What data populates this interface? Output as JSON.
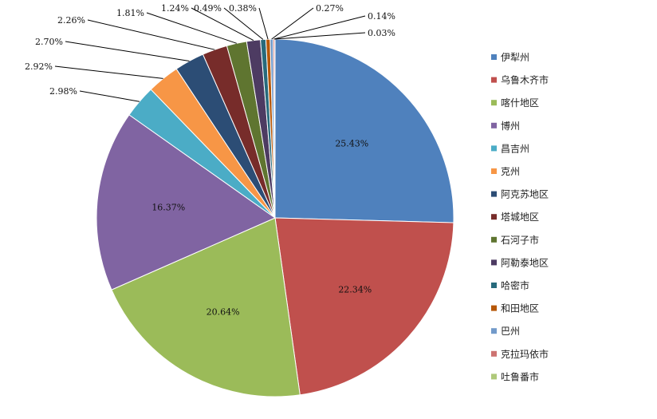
{
  "chart_data": {
    "type": "pie",
    "title": "",
    "legend_position": "right",
    "slices": [
      {
        "name": "伊犁州",
        "value": 25.43,
        "label": "25.43%",
        "color": "#4F81BD"
      },
      {
        "name": "乌鲁木齐市",
        "value": 22.34,
        "label": "22.34%",
        "color": "#C0504D"
      },
      {
        "name": "喀什地区",
        "value": 20.64,
        "label": "20.64%",
        "color": "#9BBB59"
      },
      {
        "name": "博州",
        "value": 16.37,
        "label": "16.37%",
        "color": "#8064A2"
      },
      {
        "name": "昌吉州",
        "value": 2.98,
        "label": "2.98%",
        "color": "#4BACC6"
      },
      {
        "name": "克州",
        "value": 2.92,
        "label": "2.92%",
        "color": "#F79646"
      },
      {
        "name": "阿克苏地区",
        "value": 2.7,
        "label": "2.70%",
        "color": "#2C4D75"
      },
      {
        "name": "塔城地区",
        "value": 2.26,
        "label": "2.26%",
        "color": "#772C2A"
      },
      {
        "name": "石河子市",
        "value": 1.81,
        "label": "1.81%",
        "color": "#5F7530"
      },
      {
        "name": "阿勒泰地区",
        "value": 1.24,
        "label": "1.24%",
        "color": "#4D3B62"
      },
      {
        "name": "哈密市",
        "value": 0.49,
        "label": "0.49%",
        "color": "#276A7C"
      },
      {
        "name": "和田地区",
        "value": 0.38,
        "label": "0.38%",
        "color": "#B65708"
      },
      {
        "name": "巴州",
        "value": 0.27,
        "label": "0.27%",
        "color": "#729ACA"
      },
      {
        "name": "克拉玛依市",
        "value": 0.14,
        "label": "0.14%",
        "color": "#CD7371"
      },
      {
        "name": "吐鲁番市",
        "value": 0.03,
        "label": "0.03%",
        "color": "#AFC97A"
      }
    ]
  }
}
